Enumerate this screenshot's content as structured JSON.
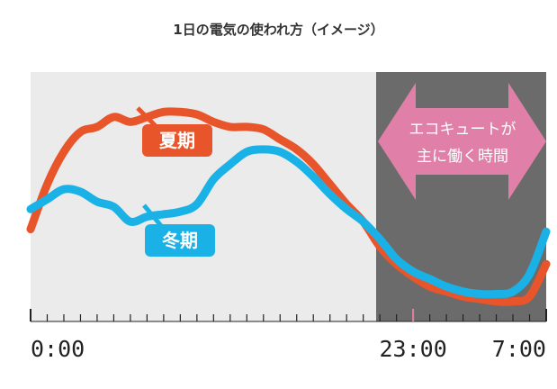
{
  "chart_data": {
    "type": "line",
    "title": "1日の電気の使われ方（イメージ）",
    "xlabel": "",
    "ylabel": "",
    "x_ticks_labeled": [
      "0:00",
      "23:00",
      "7:00"
    ],
    "x_hours": [
      0,
      1,
      2,
      3,
      4,
      5,
      6,
      7,
      8,
      9,
      10,
      11,
      12,
      13,
      14,
      15,
      16,
      17,
      18,
      19,
      20,
      21,
      22,
      23,
      24,
      25,
      26,
      27,
      28,
      29,
      30,
      31
    ],
    "x_range": [
      0,
      31
    ],
    "y_range": [
      0,
      100
    ],
    "series": [
      {
        "name": "夏期",
        "color": "#e8552b",
        "x": [
          0,
          1,
          2,
          3,
          4,
          5,
          6,
          7,
          8,
          9,
          10,
          11,
          12,
          13,
          14,
          15,
          16,
          17,
          18,
          19,
          20,
          21,
          22,
          23,
          24,
          25,
          26,
          27,
          28,
          29,
          30,
          31
        ],
        "values": [
          37,
          55,
          68,
          76,
          78,
          82,
          80,
          82,
          84,
          84,
          83,
          80,
          78,
          78,
          77,
          73,
          69,
          63,
          55,
          47,
          40,
          30,
          23,
          18,
          14,
          12,
          10,
          9,
          8,
          8,
          10,
          23
        ]
      },
      {
        "name": "冬期",
        "color": "#1ab2e6",
        "x": [
          0,
          1,
          2,
          3,
          4,
          5,
          6,
          7,
          8,
          9,
          10,
          11,
          12,
          13,
          14,
          15,
          16,
          17,
          18,
          19,
          20,
          21,
          22,
          23,
          24,
          25,
          26,
          27,
          28,
          29,
          30,
          31
        ],
        "values": [
          45,
          49,
          53,
          52,
          48,
          46,
          40,
          42,
          43,
          44,
          47,
          57,
          63,
          68,
          69,
          68,
          64,
          58,
          51,
          45,
          40,
          33,
          25,
          20,
          17,
          14,
          12,
          11,
          11,
          12,
          19,
          36
        ]
      }
    ],
    "annotations": {
      "ecocute_line1": "エコキュートが",
      "ecocute_line2": "主に働く時間",
      "ecocute_start_hour": 23,
      "ecocute_end_hour": 31,
      "summer_label": "夏期",
      "winter_label": "冬期"
    },
    "grid": false,
    "legend": "inline labels"
  },
  "colors": {
    "plot_bg": "#ebebeb",
    "night_bg": "#6b6b6b",
    "arrow": "#e080a8",
    "summer": "#e8552b",
    "winter": "#1ab2e6",
    "axis": "#222222"
  }
}
